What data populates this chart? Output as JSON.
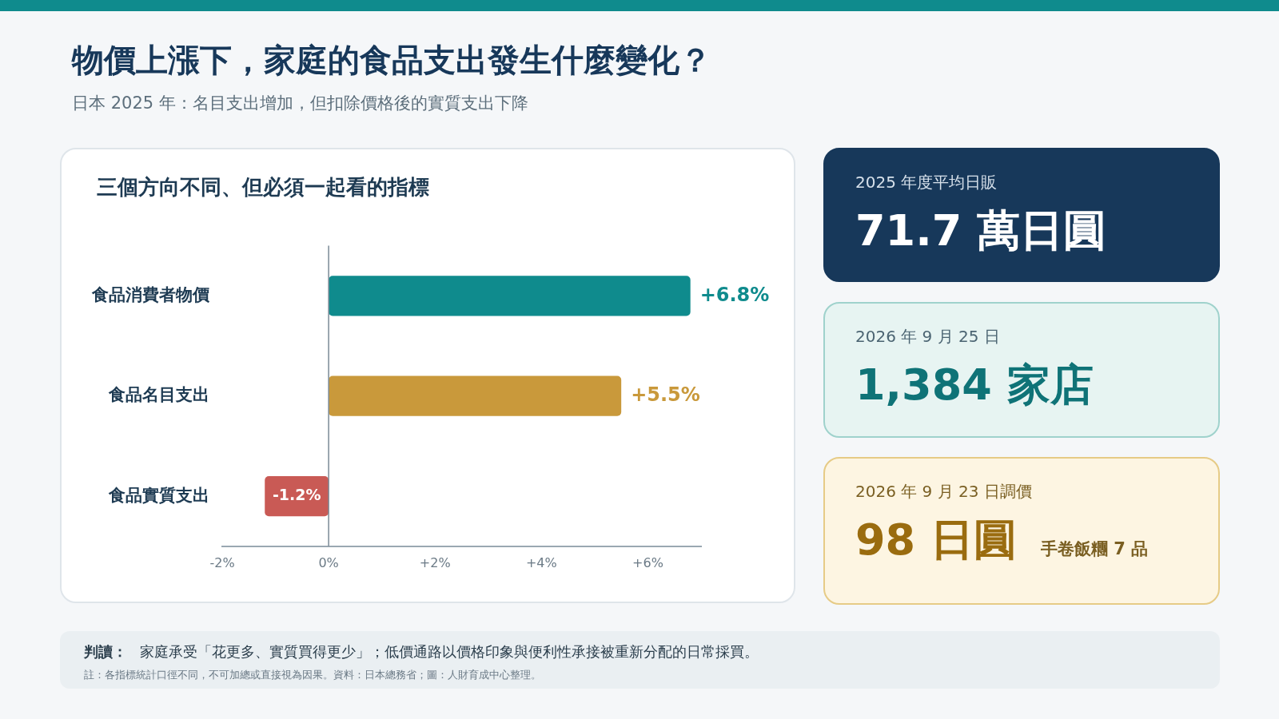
{
  "chart_data": [
    {
      "type": "other",
      "title": "物價上漲下，家庭的食品支出發生什麼變化？",
      "subtitle": "日本 2025 年：名目支出增加，但扣除價格後的實質支出下降"
    },
    {
      "type": "bar",
      "orientation": "horizontal",
      "title": "三個方向不同、但必須一起看的指標",
      "categories": [
        "食品消費者物價",
        "食品名目支出",
        "食品實質支出"
      ],
      "values": [
        6.8,
        5.5,
        -1.2
      ],
      "colors": [
        "#0f8b8d",
        "#c9993b",
        "#c95a55"
      ],
      "value_labels": [
        "+6.8%",
        "+5.5%",
        "-1.2%"
      ],
      "xlim": [
        -2,
        7
      ],
      "xticks": [
        {
          "value": -2,
          "label": "-2%"
        },
        {
          "value": 0,
          "label": "0%"
        },
        {
          "value": 2,
          "label": "+2%"
        },
        {
          "value": 4,
          "label": "+4%"
        },
        {
          "value": 6,
          "label": "+6%"
        }
      ],
      "grid": false,
      "ref_lines": [
        {
          "axis": "x",
          "value": 0,
          "color": "#7a8a96"
        }
      ],
      "annotations": [
        "判讀：",
        "家庭承受「花更多、實質買得更少」；低價通路以價格印象與便利性承接被重新分配的日常採買。",
        "註：各指標統計口徑不同，不可加總或直接視為因果。資料：日本總務省；圖：人財育成中心整理。"
      ]
    },
    {
      "type": "other",
      "title": "2025 年度平均日販",
      "annotations": [
        "71.7 萬日圓"
      ]
    },
    {
      "type": "other",
      "title": "2026 年 9 月 25 日",
      "annotations": [
        "1,384 家店"
      ]
    },
    {
      "type": "other",
      "title": "2026 年 9 月 23 日調價",
      "annotations": [
        "98 日圓",
        "手卷飯糰 7 品"
      ]
    }
  ]
}
